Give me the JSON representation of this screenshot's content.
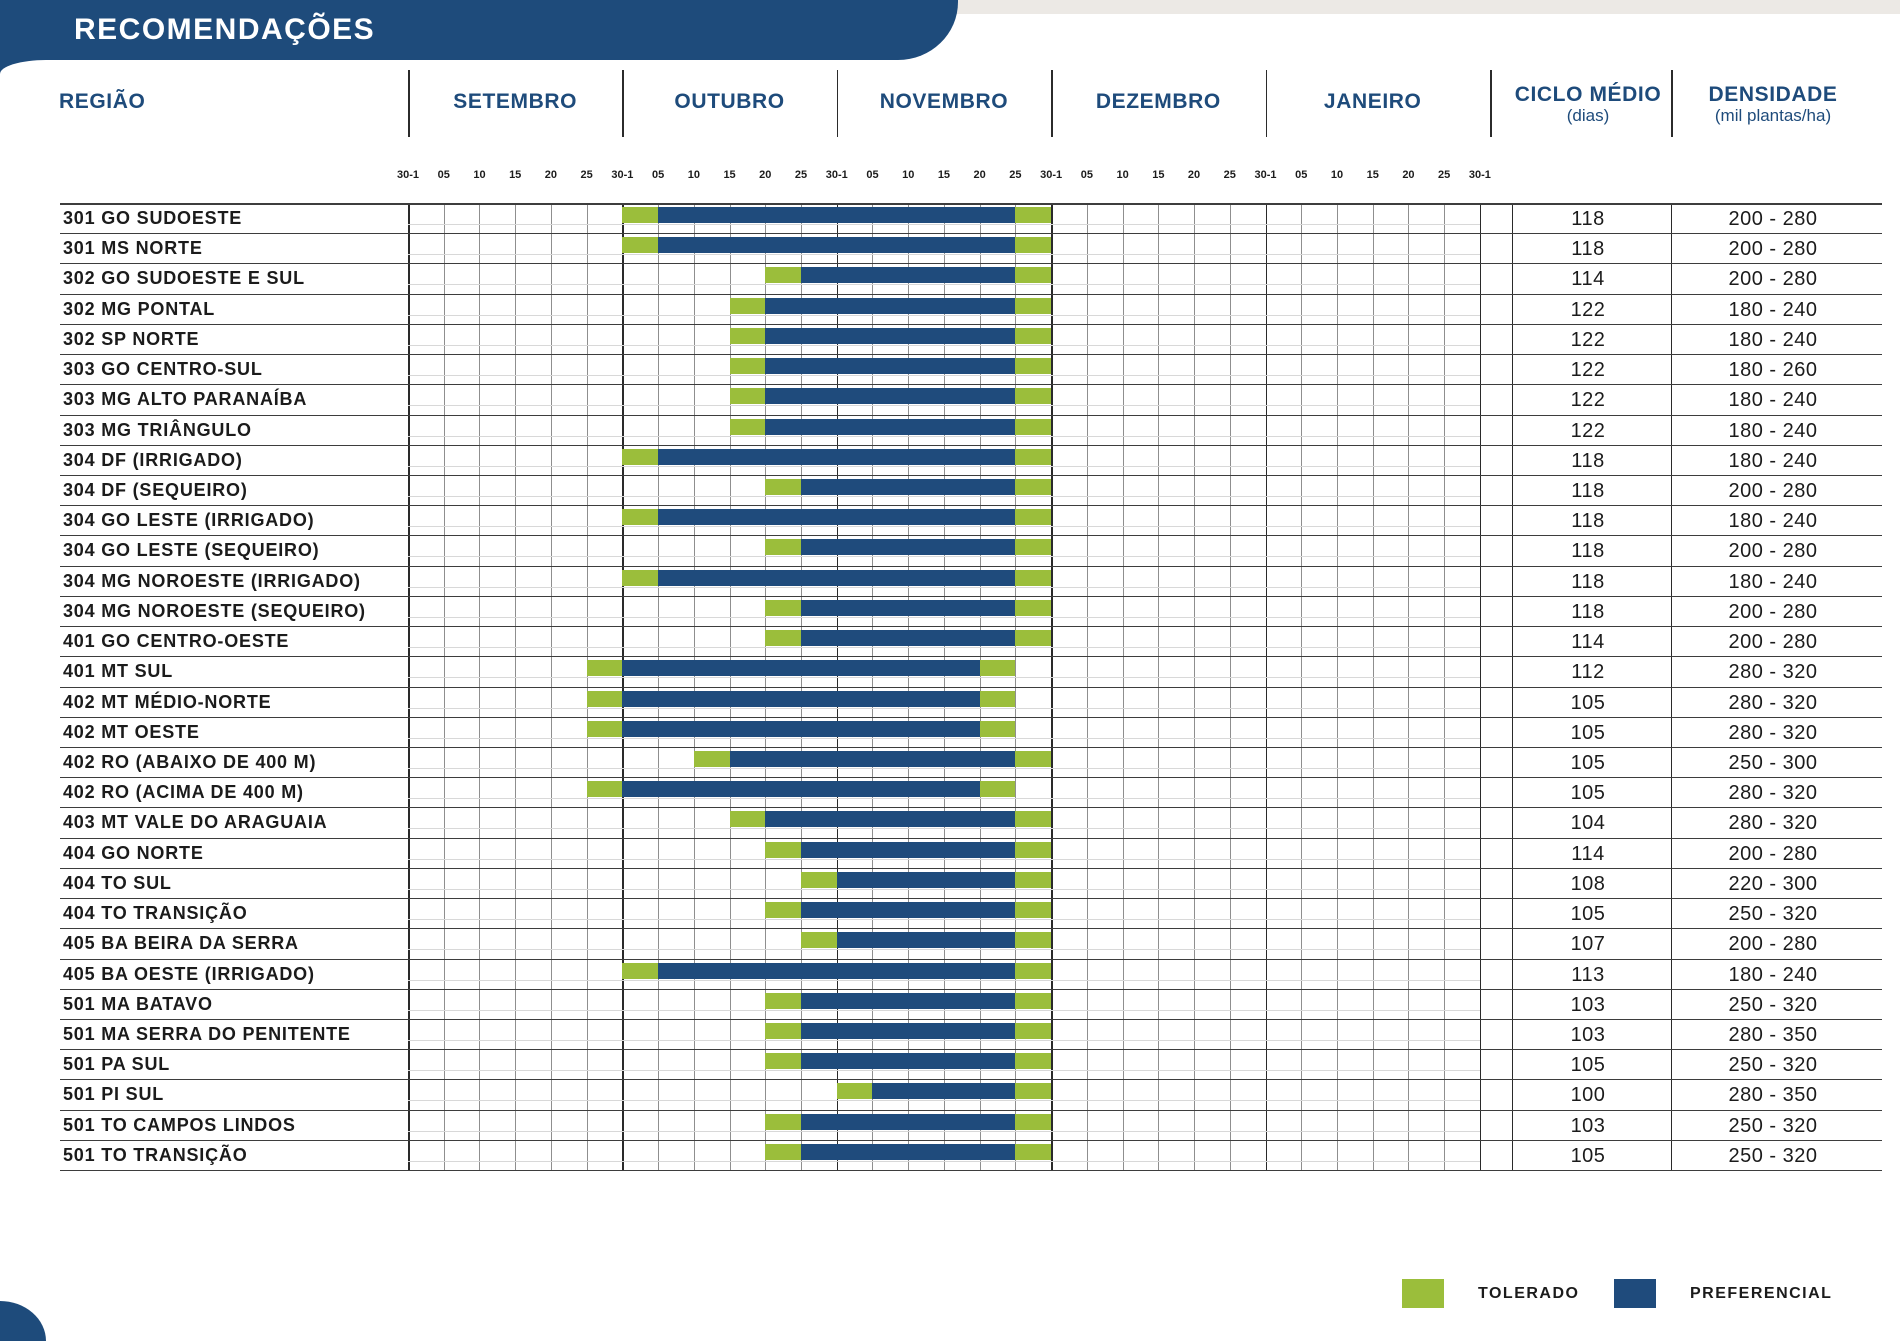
{
  "title": "RECOMENDAÇÕES",
  "header": {
    "region": "REGIÃO",
    "months": [
      "SETEMBRO",
      "OUTUBRO",
      "NOVEMBRO",
      "DEZEMBRO",
      "JANEIRO"
    ],
    "ciclo_label": "CICLO MÉDIO",
    "ciclo_sub": "(dias)",
    "densidade_label": "DENSIDADE",
    "densidade_sub": "(mil plantas/ha)"
  },
  "ticks": [
    "30-1",
    "05",
    "10",
    "15",
    "20",
    "25",
    "30-1",
    "05",
    "10",
    "15",
    "20",
    "25",
    "30-1",
    "05",
    "10",
    "15",
    "20",
    "25",
    "30-1",
    "05",
    "10",
    "15",
    "20",
    "25",
    "30-1",
    "05",
    "10",
    "15",
    "20",
    "25",
    "30-1"
  ],
  "legend": [
    {
      "label": "TOLERADO",
      "color": "#9BBE3B"
    },
    {
      "label": "PREFERENCIAL",
      "color": "#1F4B7C"
    }
  ],
  "colors": {
    "banner": "#1E4B7B",
    "tolerado": "#9BBE3B",
    "preferencial": "#1F4B7C",
    "header_text": "#1E4B7B"
  },
  "chart_data": {
    "type": "table",
    "title": "RECOMENDAÇÕES",
    "timeline": {
      "months": [
        "SETEMBRO",
        "OUTUBRO",
        "NOVEMBRO",
        "DEZEMBRO",
        "JANEIRO"
      ],
      "cells": 30,
      "days_per_cell": 5,
      "cell_scale": "boundary k = 1 Sep + 5*k days; tick labels repeat 30-1,05,10,15,20,25 each month"
    },
    "legend": [
      "TOLERADO",
      "PREFERENCIAL"
    ],
    "rows": [
      {
        "region": "301 GO SUDOESTE",
        "ciclo_medio_dias": "118",
        "densidade": "200 - 280",
        "tolerado_from": 6,
        "preferencial_from": 7,
        "preferencial_to": 17,
        "tolerado_to": 18
      },
      {
        "region": "301 MS NORTE",
        "ciclo_medio_dias": "118",
        "densidade": "200 - 280",
        "tolerado_from": 6,
        "preferencial_from": 7,
        "preferencial_to": 17,
        "tolerado_to": 18
      },
      {
        "region": "302 GO SUDOESTE E SUL",
        "ciclo_medio_dias": "114",
        "densidade": "200 - 280",
        "tolerado_from": 10,
        "preferencial_from": 11,
        "preferencial_to": 17,
        "tolerado_to": 18
      },
      {
        "region": "302 MG PONTAL",
        "ciclo_medio_dias": "122",
        "densidade": "180 - 240",
        "tolerado_from": 9,
        "preferencial_from": 10,
        "preferencial_to": 17,
        "tolerado_to": 18
      },
      {
        "region": "302 SP NORTE",
        "ciclo_medio_dias": "122",
        "densidade": "180 - 240",
        "tolerado_from": 9,
        "preferencial_from": 10,
        "preferencial_to": 17,
        "tolerado_to": 18
      },
      {
        "region": "303 GO CENTRO-SUL",
        "ciclo_medio_dias": "122",
        "densidade": "180 - 260",
        "tolerado_from": 9,
        "preferencial_from": 10,
        "preferencial_to": 17,
        "tolerado_to": 18
      },
      {
        "region": "303 MG ALTO PARANAÍBA",
        "ciclo_medio_dias": "122",
        "densidade": "180 - 240",
        "tolerado_from": 9,
        "preferencial_from": 10,
        "preferencial_to": 17,
        "tolerado_to": 18
      },
      {
        "region": "303 MG TRIÂNGULO",
        "ciclo_medio_dias": "122",
        "densidade": "180 - 240",
        "tolerado_from": 9,
        "preferencial_from": 10,
        "preferencial_to": 17,
        "tolerado_to": 18
      },
      {
        "region": "304 DF (IRRIGADO)",
        "ciclo_medio_dias": "118",
        "densidade": "180 - 240",
        "tolerado_from": 6,
        "preferencial_from": 7,
        "preferencial_to": 17,
        "tolerado_to": 18
      },
      {
        "region": "304 DF (SEQUEIRO)",
        "ciclo_medio_dias": "118",
        "densidade": "200 - 280",
        "tolerado_from": 10,
        "preferencial_from": 11,
        "preferencial_to": 17,
        "tolerado_to": 18
      },
      {
        "region": "304 GO LESTE (IRRIGADO)",
        "ciclo_medio_dias": "118",
        "densidade": "180 - 240",
        "tolerado_from": 6,
        "preferencial_from": 7,
        "preferencial_to": 17,
        "tolerado_to": 18
      },
      {
        "region": "304 GO LESTE (SEQUEIRO)",
        "ciclo_medio_dias": "118",
        "densidade": "200 - 280",
        "tolerado_from": 10,
        "preferencial_from": 11,
        "preferencial_to": 17,
        "tolerado_to": 18
      },
      {
        "region": "304 MG NOROESTE (IRRIGADO)",
        "ciclo_medio_dias": "118",
        "densidade": "180 - 240",
        "tolerado_from": 6,
        "preferencial_from": 7,
        "preferencial_to": 17,
        "tolerado_to": 18
      },
      {
        "region": "304 MG NOROESTE (SEQUEIRO)",
        "ciclo_medio_dias": "118",
        "densidade": "200 - 280",
        "tolerado_from": 10,
        "preferencial_from": 11,
        "preferencial_to": 17,
        "tolerado_to": 18
      },
      {
        "region": "401 GO CENTRO-OESTE",
        "ciclo_medio_dias": "114",
        "densidade": "200 - 280",
        "tolerado_from": 10,
        "preferencial_from": 11,
        "preferencial_to": 17,
        "tolerado_to": 18
      },
      {
        "region": "401 MT SUL",
        "ciclo_medio_dias": "112",
        "densidade": "280 - 320",
        "tolerado_from": 5,
        "preferencial_from": 6,
        "preferencial_to": 16,
        "tolerado_to": 17
      },
      {
        "region": "402 MT MÉDIO-NORTE",
        "ciclo_medio_dias": "105",
        "densidade": "280 - 320",
        "tolerado_from": 5,
        "preferencial_from": 6,
        "preferencial_to": 16,
        "tolerado_to": 17
      },
      {
        "region": "402 MT OESTE",
        "ciclo_medio_dias": "105",
        "densidade": "280 - 320",
        "tolerado_from": 5,
        "preferencial_from": 6,
        "preferencial_to": 16,
        "tolerado_to": 17
      },
      {
        "region": "402 RO (ABAIXO DE 400 M)",
        "ciclo_medio_dias": "105",
        "densidade": "250 - 300",
        "tolerado_from": 8,
        "preferencial_from": 9,
        "preferencial_to": 17,
        "tolerado_to": 18
      },
      {
        "region": "402 RO (ACIMA DE 400 M)",
        "ciclo_medio_dias": "105",
        "densidade": "280 - 320",
        "tolerado_from": 5,
        "preferencial_from": 6,
        "preferencial_to": 16,
        "tolerado_to": 17
      },
      {
        "region": "403 MT VALE DO ARAGUAIA",
        "ciclo_medio_dias": "104",
        "densidade": "280 - 320",
        "tolerado_from": 9,
        "preferencial_from": 10,
        "preferencial_to": 17,
        "tolerado_to": 18
      },
      {
        "region": "404 GO NORTE",
        "ciclo_medio_dias": "114",
        "densidade": "200 - 280",
        "tolerado_from": 10,
        "preferencial_from": 11,
        "preferencial_to": 17,
        "tolerado_to": 18
      },
      {
        "region": "404 TO SUL",
        "ciclo_medio_dias": "108",
        "densidade": "220 - 300",
        "tolerado_from": 11,
        "preferencial_from": 12,
        "preferencial_to": 17,
        "tolerado_to": 18
      },
      {
        "region": "404 TO TRANSIÇÃO",
        "ciclo_medio_dias": "105",
        "densidade": "250 - 320",
        "tolerado_from": 10,
        "preferencial_from": 11,
        "preferencial_to": 17,
        "tolerado_to": 18
      },
      {
        "region": "405 BA BEIRA DA SERRA",
        "ciclo_medio_dias": "107",
        "densidade": "200 - 280",
        "tolerado_from": 11,
        "preferencial_from": 12,
        "preferencial_to": 17,
        "tolerado_to": 18
      },
      {
        "region": "405 BA OESTE (IRRIGADO)",
        "ciclo_medio_dias": "113",
        "densidade": "180 - 240",
        "tolerado_from": 6,
        "preferencial_from": 7,
        "preferencial_to": 17,
        "tolerado_to": 18
      },
      {
        "region": "501 MA BATAVO",
        "ciclo_medio_dias": "103",
        "densidade": "250 - 320",
        "tolerado_from": 10,
        "preferencial_from": 11,
        "preferencial_to": 17,
        "tolerado_to": 18
      },
      {
        "region": "501 MA SERRA DO PENITENTE",
        "ciclo_medio_dias": "103",
        "densidade": "280 - 350",
        "tolerado_from": 10,
        "preferencial_from": 11,
        "preferencial_to": 17,
        "tolerado_to": 18
      },
      {
        "region": "501 PA SUL",
        "ciclo_medio_dias": "105",
        "densidade": "250 - 320",
        "tolerado_from": 10,
        "preferencial_from": 11,
        "preferencial_to": 17,
        "tolerado_to": 18
      },
      {
        "region": "501 PI SUL",
        "ciclo_medio_dias": "100",
        "densidade": "280 - 350",
        "tolerado_from": 12,
        "preferencial_from": 13,
        "preferencial_to": 17,
        "tolerado_to": 18
      },
      {
        "region": "501 TO CAMPOS LINDOS",
        "ciclo_medio_dias": "103",
        "densidade": "250 - 320",
        "tolerado_from": 10,
        "preferencial_from": 11,
        "preferencial_to": 17,
        "tolerado_to": 18
      },
      {
        "region": "501 TO TRANSIÇÃO",
        "ciclo_medio_dias": "105",
        "densidade": "250 - 320",
        "tolerado_from": 10,
        "preferencial_from": 11,
        "preferencial_to": 17,
        "tolerado_to": 18
      }
    ]
  }
}
